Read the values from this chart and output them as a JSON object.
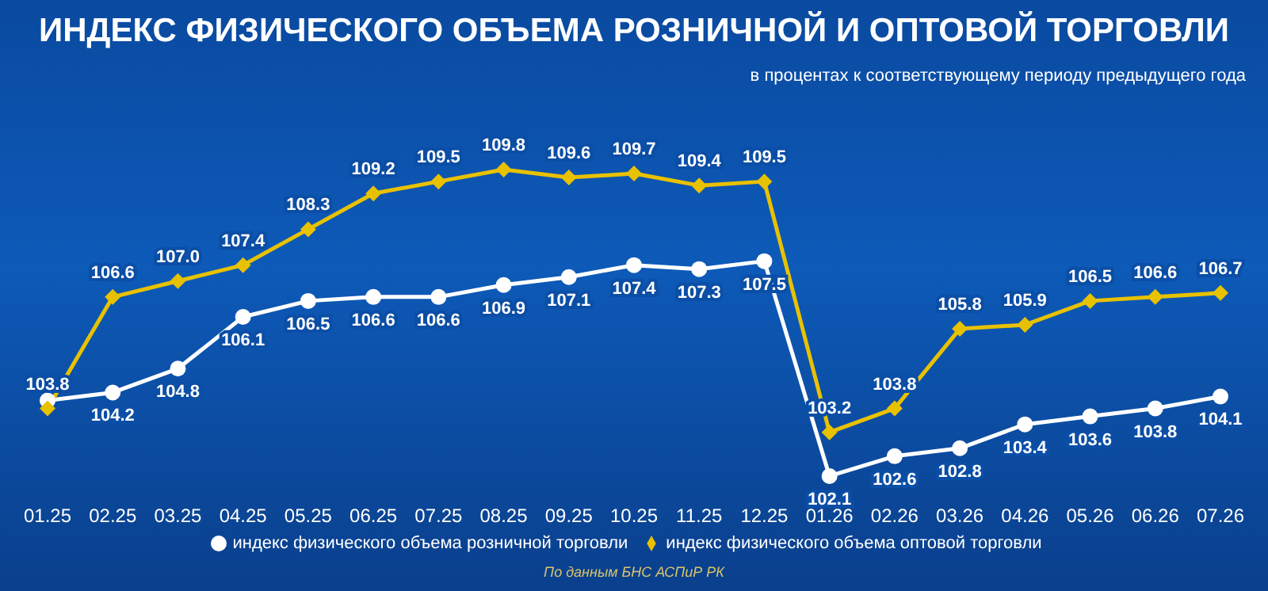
{
  "chart_data": {
    "type": "line",
    "title": "ИНДЕКС ФИЗИЧЕСКОГО ОБЪЕМА РОЗНИЧНОЙ И ОПТОВОЙ ТОРГОВЛИ",
    "subtitle": "в процентах к соответствующему периоду предыдущего года",
    "categories": [
      "01.25",
      "02.25",
      "03.25",
      "04.25",
      "05.25",
      "06.25",
      "07.25",
      "08.25",
      "09.25",
      "10.25",
      "11.25",
      "12.25",
      "01.26",
      "02.26",
      "03.26",
      "04.26",
      "05.26",
      "06.26",
      "07.26"
    ],
    "series": [
      {
        "name": "индекс физического объема розничной торговли",
        "color": "#ffffff",
        "marker": "circle",
        "values": [
          104.0,
          104.2,
          104.8,
          106.1,
          106.5,
          106.6,
          106.6,
          106.9,
          107.1,
          107.4,
          107.3,
          107.5,
          102.1,
          102.6,
          102.8,
          103.4,
          103.6,
          103.8,
          104.1
        ],
        "value_labels": [
          null,
          "104.2",
          "104.8",
          "106.1",
          "106.5",
          "106.6",
          "106.6",
          "106.9",
          "107.1",
          "107.4",
          "107.3",
          "107.5",
          "102.1",
          "102.6",
          "102.8",
          "103.4",
          "103.6",
          "103.8",
          "104.1"
        ]
      },
      {
        "name": "индекс физического объема оптовой торговли",
        "color": "#e8c100",
        "marker": "diamond",
        "values": [
          103.8,
          106.6,
          107.0,
          107.4,
          108.3,
          109.2,
          109.5,
          109.8,
          109.6,
          109.7,
          109.4,
          109.5,
          103.2,
          103.8,
          105.8,
          105.9,
          106.5,
          106.6,
          106.7
        ],
        "value_labels": [
          "103.8",
          "106.6",
          "107.0",
          "107.4",
          "108.3",
          "109.2",
          "109.5",
          "109.8",
          "109.6",
          "109.7",
          "109.4",
          "109.5",
          "103.2",
          "103.8",
          "105.8",
          "105.9",
          "106.5",
          "106.6",
          "106.7"
        ]
      }
    ],
    "legend": "bottom",
    "grid": false,
    "annotations": [
      "По данным БНС АСПиР РК"
    ]
  }
}
